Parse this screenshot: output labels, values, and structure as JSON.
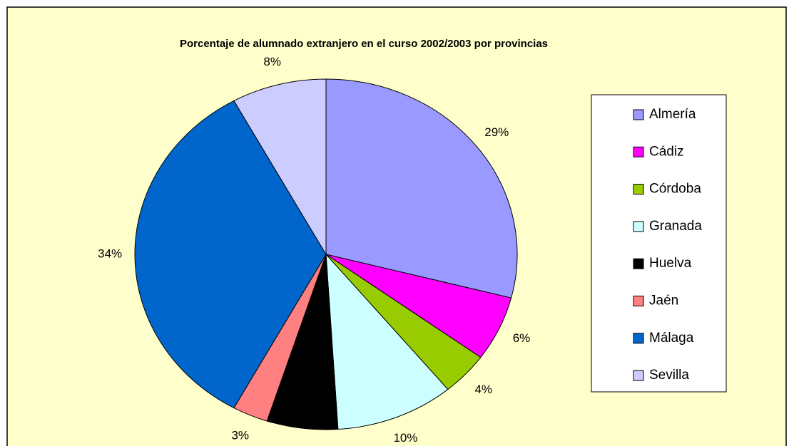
{
  "chart_data": {
    "type": "pie",
    "title": "Porcentaje de alumnado extranjero en el curso 2002/2003 por provincias",
    "categories": [
      "Almería",
      "Cádiz",
      "Córdoba",
      "Granada",
      "Huelva",
      "Jaén",
      "Málaga",
      "Sevilla"
    ],
    "values": [
      29,
      6,
      4,
      10,
      6,
      3,
      34,
      8
    ],
    "value_labels": [
      "29%",
      "6%",
      "4%",
      "10%",
      "6%",
      "3%",
      "34%",
      "8%"
    ],
    "colors": [
      "#9999ff",
      "#ff00ff",
      "#99cc00",
      "#ccffff",
      "#000000",
      "#ff8080",
      "#0066cc",
      "#ccccff"
    ],
    "legend": "right"
  }
}
